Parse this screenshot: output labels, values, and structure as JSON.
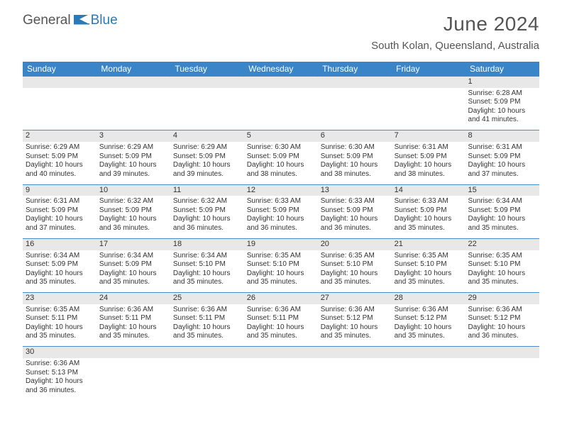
{
  "brand": {
    "part1": "General",
    "part2": "Blue"
  },
  "title": "June 2024",
  "location": "South Kolan, Queensland, Australia",
  "colors": {
    "header_bg": "#3a85c8",
    "header_text": "#ffffff",
    "daynum_bg": "#e8e8e8",
    "border": "#4a8cc9",
    "title_color": "#555555",
    "brand_blue": "#2a7ab8",
    "brand_gray": "#555555"
  },
  "day_headers": [
    "Sunday",
    "Monday",
    "Tuesday",
    "Wednesday",
    "Thursday",
    "Friday",
    "Saturday"
  ],
  "weeks": [
    [
      null,
      null,
      null,
      null,
      null,
      null,
      {
        "n": "1",
        "sunrise": "Sunrise: 6:28 AM",
        "sunset": "Sunset: 5:09 PM",
        "day1": "Daylight: 10 hours",
        "day2": "and 41 minutes."
      }
    ],
    [
      {
        "n": "2",
        "sunrise": "Sunrise: 6:29 AM",
        "sunset": "Sunset: 5:09 PM",
        "day1": "Daylight: 10 hours",
        "day2": "and 40 minutes."
      },
      {
        "n": "3",
        "sunrise": "Sunrise: 6:29 AM",
        "sunset": "Sunset: 5:09 PM",
        "day1": "Daylight: 10 hours",
        "day2": "and 39 minutes."
      },
      {
        "n": "4",
        "sunrise": "Sunrise: 6:29 AM",
        "sunset": "Sunset: 5:09 PM",
        "day1": "Daylight: 10 hours",
        "day2": "and 39 minutes."
      },
      {
        "n": "5",
        "sunrise": "Sunrise: 6:30 AM",
        "sunset": "Sunset: 5:09 PM",
        "day1": "Daylight: 10 hours",
        "day2": "and 38 minutes."
      },
      {
        "n": "6",
        "sunrise": "Sunrise: 6:30 AM",
        "sunset": "Sunset: 5:09 PM",
        "day1": "Daylight: 10 hours",
        "day2": "and 38 minutes."
      },
      {
        "n": "7",
        "sunrise": "Sunrise: 6:31 AM",
        "sunset": "Sunset: 5:09 PM",
        "day1": "Daylight: 10 hours",
        "day2": "and 38 minutes."
      },
      {
        "n": "8",
        "sunrise": "Sunrise: 6:31 AM",
        "sunset": "Sunset: 5:09 PM",
        "day1": "Daylight: 10 hours",
        "day2": "and 37 minutes."
      }
    ],
    [
      {
        "n": "9",
        "sunrise": "Sunrise: 6:31 AM",
        "sunset": "Sunset: 5:09 PM",
        "day1": "Daylight: 10 hours",
        "day2": "and 37 minutes."
      },
      {
        "n": "10",
        "sunrise": "Sunrise: 6:32 AM",
        "sunset": "Sunset: 5:09 PM",
        "day1": "Daylight: 10 hours",
        "day2": "and 36 minutes."
      },
      {
        "n": "11",
        "sunrise": "Sunrise: 6:32 AM",
        "sunset": "Sunset: 5:09 PM",
        "day1": "Daylight: 10 hours",
        "day2": "and 36 minutes."
      },
      {
        "n": "12",
        "sunrise": "Sunrise: 6:33 AM",
        "sunset": "Sunset: 5:09 PM",
        "day1": "Daylight: 10 hours",
        "day2": "and 36 minutes."
      },
      {
        "n": "13",
        "sunrise": "Sunrise: 6:33 AM",
        "sunset": "Sunset: 5:09 PM",
        "day1": "Daylight: 10 hours",
        "day2": "and 36 minutes."
      },
      {
        "n": "14",
        "sunrise": "Sunrise: 6:33 AM",
        "sunset": "Sunset: 5:09 PM",
        "day1": "Daylight: 10 hours",
        "day2": "and 35 minutes."
      },
      {
        "n": "15",
        "sunrise": "Sunrise: 6:34 AM",
        "sunset": "Sunset: 5:09 PM",
        "day1": "Daylight: 10 hours",
        "day2": "and 35 minutes."
      }
    ],
    [
      {
        "n": "16",
        "sunrise": "Sunrise: 6:34 AM",
        "sunset": "Sunset: 5:09 PM",
        "day1": "Daylight: 10 hours",
        "day2": "and 35 minutes."
      },
      {
        "n": "17",
        "sunrise": "Sunrise: 6:34 AM",
        "sunset": "Sunset: 5:09 PM",
        "day1": "Daylight: 10 hours",
        "day2": "and 35 minutes."
      },
      {
        "n": "18",
        "sunrise": "Sunrise: 6:34 AM",
        "sunset": "Sunset: 5:10 PM",
        "day1": "Daylight: 10 hours",
        "day2": "and 35 minutes."
      },
      {
        "n": "19",
        "sunrise": "Sunrise: 6:35 AM",
        "sunset": "Sunset: 5:10 PM",
        "day1": "Daylight: 10 hours",
        "day2": "and 35 minutes."
      },
      {
        "n": "20",
        "sunrise": "Sunrise: 6:35 AM",
        "sunset": "Sunset: 5:10 PM",
        "day1": "Daylight: 10 hours",
        "day2": "and 35 minutes."
      },
      {
        "n": "21",
        "sunrise": "Sunrise: 6:35 AM",
        "sunset": "Sunset: 5:10 PM",
        "day1": "Daylight: 10 hours",
        "day2": "and 35 minutes."
      },
      {
        "n": "22",
        "sunrise": "Sunrise: 6:35 AM",
        "sunset": "Sunset: 5:10 PM",
        "day1": "Daylight: 10 hours",
        "day2": "and 35 minutes."
      }
    ],
    [
      {
        "n": "23",
        "sunrise": "Sunrise: 6:35 AM",
        "sunset": "Sunset: 5:11 PM",
        "day1": "Daylight: 10 hours",
        "day2": "and 35 minutes."
      },
      {
        "n": "24",
        "sunrise": "Sunrise: 6:36 AM",
        "sunset": "Sunset: 5:11 PM",
        "day1": "Daylight: 10 hours",
        "day2": "and 35 minutes."
      },
      {
        "n": "25",
        "sunrise": "Sunrise: 6:36 AM",
        "sunset": "Sunset: 5:11 PM",
        "day1": "Daylight: 10 hours",
        "day2": "and 35 minutes."
      },
      {
        "n": "26",
        "sunrise": "Sunrise: 6:36 AM",
        "sunset": "Sunset: 5:11 PM",
        "day1": "Daylight: 10 hours",
        "day2": "and 35 minutes."
      },
      {
        "n": "27",
        "sunrise": "Sunrise: 6:36 AM",
        "sunset": "Sunset: 5:12 PM",
        "day1": "Daylight: 10 hours",
        "day2": "and 35 minutes."
      },
      {
        "n": "28",
        "sunrise": "Sunrise: 6:36 AM",
        "sunset": "Sunset: 5:12 PM",
        "day1": "Daylight: 10 hours",
        "day2": "and 35 minutes."
      },
      {
        "n": "29",
        "sunrise": "Sunrise: 6:36 AM",
        "sunset": "Sunset: 5:12 PM",
        "day1": "Daylight: 10 hours",
        "day2": "and 36 minutes."
      }
    ],
    [
      {
        "n": "30",
        "sunrise": "Sunrise: 6:36 AM",
        "sunset": "Sunset: 5:13 PM",
        "day1": "Daylight: 10 hours",
        "day2": "and 36 minutes."
      },
      null,
      null,
      null,
      null,
      null,
      null
    ]
  ]
}
